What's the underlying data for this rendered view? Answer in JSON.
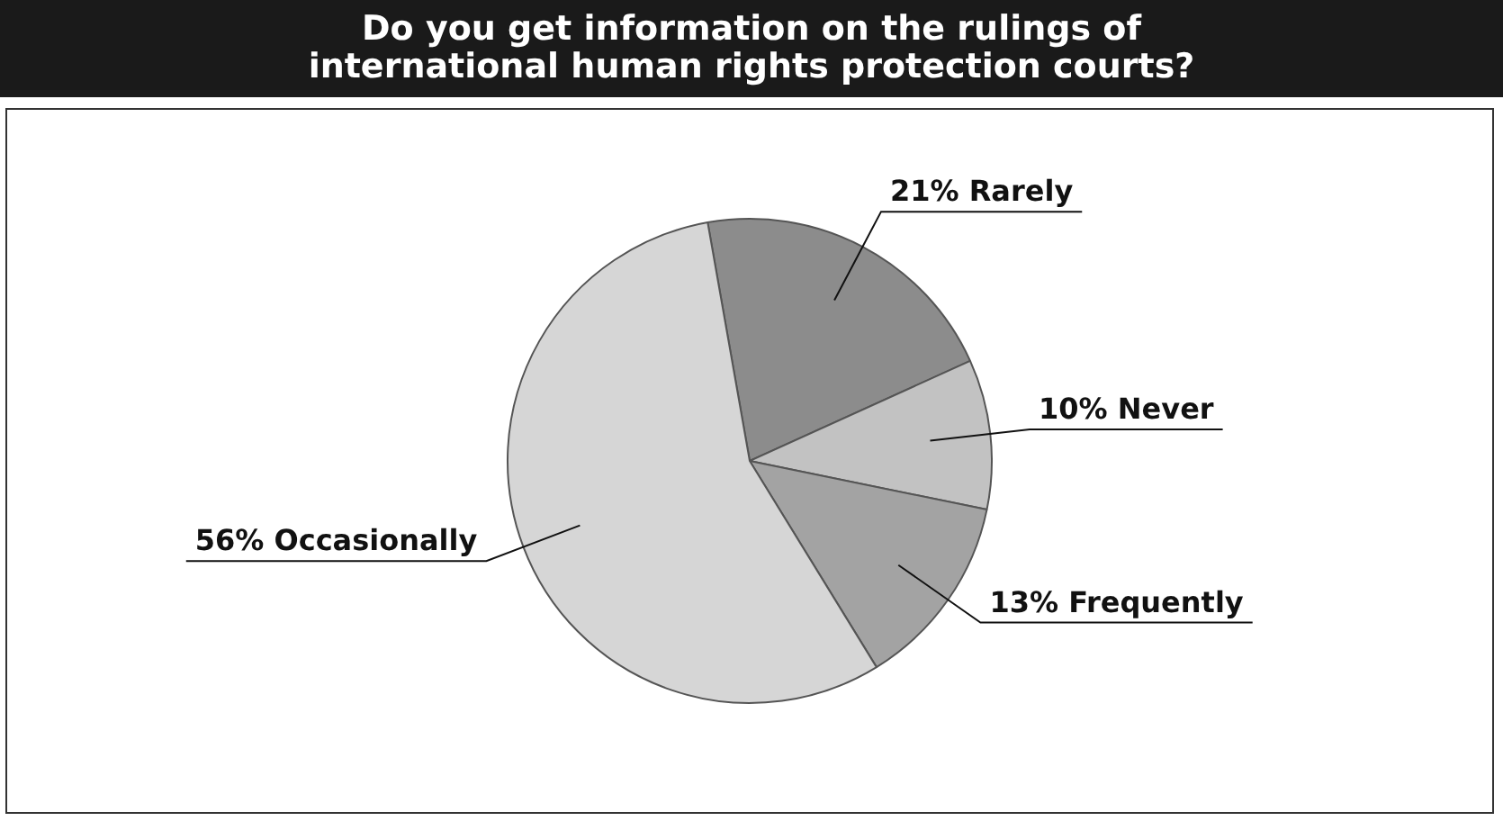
{
  "chart_data": {
    "type": "pie",
    "title": "Do you get information on the rulings of international human rights protection courts?",
    "categories": [
      "Rarely",
      "Never",
      "Frequently",
      "Occasionally"
    ],
    "values": [
      21,
      10,
      13,
      56
    ],
    "value_labels": [
      "21%",
      "10%",
      "13%",
      "56%"
    ],
    "colors": [
      "#8c8c8c",
      "#c2c2c2",
      "#a3a3a3",
      "#d6d6d6"
    ],
    "legend": false
  }
}
